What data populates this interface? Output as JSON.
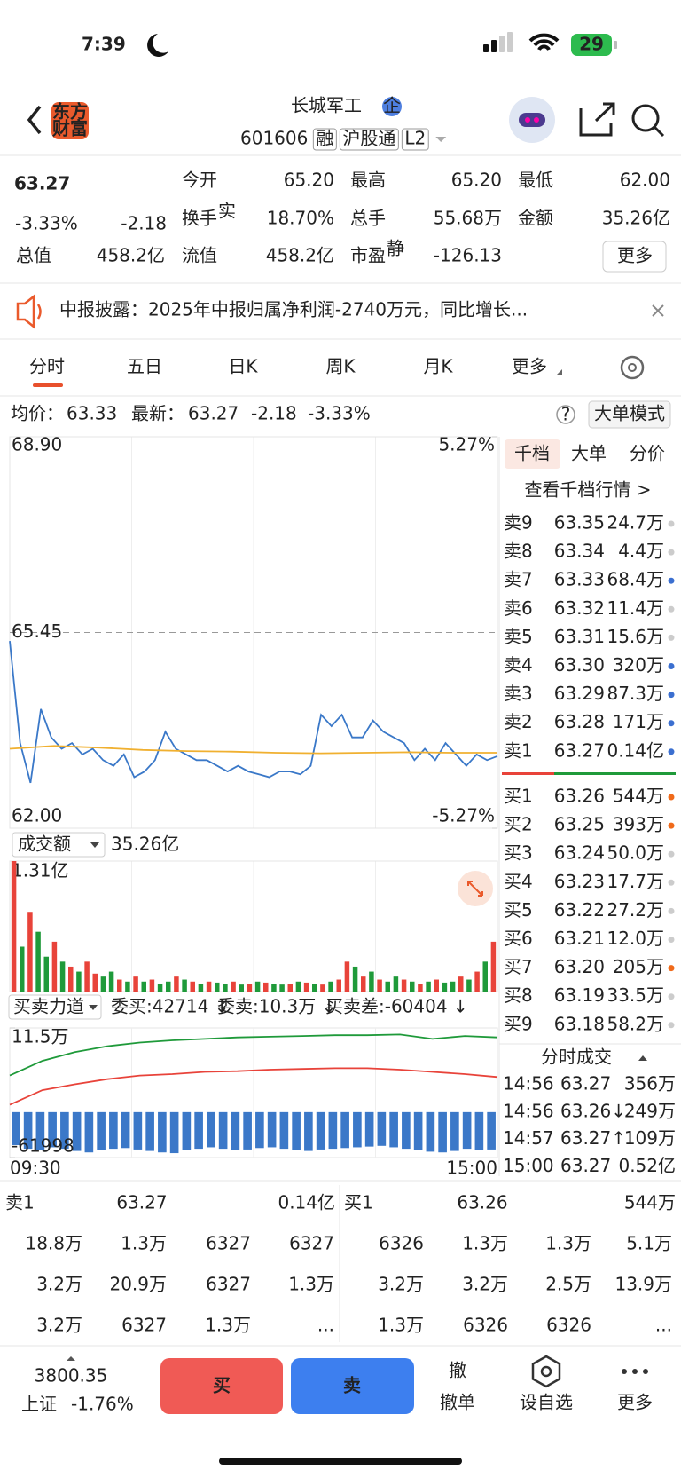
{
  "status_bar": {
    "time": "7:39",
    "battery": "29"
  },
  "header": {
    "logo": [
      "东方",
      "财富"
    ],
    "title": "长城军工",
    "badge": "企",
    "code": "601606",
    "tags": [
      "融",
      "沪股通",
      "L2"
    ]
  },
  "quote": {
    "price": "63.27",
    "change_pct": "-3.33%",
    "change": "-2.18",
    "stats": [
      {
        "label": "今开",
        "value": "65.20",
        "color": "#1f9a3a"
      },
      {
        "label": "最高",
        "value": "65.20",
        "color": "#1f9a3a"
      },
      {
        "label": "最低",
        "value": "62.00",
        "color": "#1f9a3a"
      },
      {
        "label": "换手",
        "sup": "实",
        "value": "18.70%"
      },
      {
        "label": "总手",
        "value": "55.68万"
      },
      {
        "label": "金额",
        "value": "35.26亿"
      },
      {
        "label": "总值",
        "value": "458.2亿"
      },
      {
        "label": "流值",
        "value": "458.2亿"
      },
      {
        "label": "市盈",
        "sup": "静",
        "value": "-126.13"
      }
    ],
    "more": "更多"
  },
  "notice": "中报披露：2025年中报归属净利润-2740万元，同比增长...",
  "tabs": [
    "分时",
    "五日",
    "日K",
    "周K",
    "月K",
    "更多"
  ],
  "info_bar": {
    "avg_label": "均价：",
    "avg": "63.33",
    "latest_label": "最新：",
    "latest": "63.27",
    "change": "-2.18",
    "change_pct": "-3.33%",
    "mode_button": "大单模式"
  },
  "chart_data": [
    {
      "type": "line",
      "ylim": [
        62,
        68.9
      ],
      "yticks": [
        {
          "value": 62,
          "label": "62.00"
        },
        {
          "value": 65.45,
          "label": "65.45"
        },
        {
          "value": 68.9,
          "label": "68.90"
        }
      ],
      "y2lim": [
        -5.27,
        5.27
      ],
      "y2ticks": [
        {
          "value": -5.27,
          "label": "-5.27%"
        },
        {
          "value": 5.27,
          "label": "5.27%"
        }
      ],
      "x_labels": [
        "09:30",
        "15:00"
      ],
      "series": [
        {
          "color": "#3a78c8",
          "values": [
            65.3,
            63.5,
            62.8,
            64.1,
            63.6,
            63.4,
            63.5,
            63.3,
            63.4,
            63.2,
            63.1,
            63.3,
            62.9,
            63.0,
            63.2,
            63.7,
            63.4,
            63.3,
            63.2,
            63.2,
            63.1,
            63.0,
            63.1,
            63.0,
            62.95,
            62.9,
            63.0,
            63.0,
            62.95,
            63.1,
            64.0,
            63.8,
            64.0,
            63.6,
            63.6,
            63.9,
            63.7,
            63.6,
            63.5,
            63.2,
            63.4,
            63.2,
            63.5,
            63.3,
            63.1,
            63.3,
            63.2,
            63.27
          ]
        },
        {
          "color": "#f0b030",
          "values": [
            63.4,
            63.45,
            63.42,
            63.38,
            63.36,
            63.35,
            63.33,
            63.32,
            63.33,
            63.34,
            63.33,
            63.33
          ]
        }
      ]
    },
    {
      "type": "bar",
      "selector": "成交额",
      "total": "35.26亿",
      "ylim": [
        0,
        1.31
      ],
      "yticks": [
        {
          "value": 1.31,
          "label": "1.31亿"
        }
      ],
      "values": [
        1.31,
        0.45,
        0.8,
        0.6,
        0.35,
        0.5,
        0.3,
        0.25,
        0.2,
        0.3,
        0.18,
        0.15,
        0.2,
        0.12,
        0.1,
        0.15,
        0.1,
        0.12,
        0.08,
        0.1,
        0.15,
        0.12,
        0.1,
        0.08,
        0.1,
        0.09,
        0.08,
        0.1,
        0.07,
        0.08,
        0.1,
        0.09,
        0.08,
        0.07,
        0.08,
        0.1,
        0.09,
        0.08,
        0.07,
        0.1,
        0.12,
        0.3,
        0.25,
        0.15,
        0.2,
        0.12,
        0.1,
        0.15,
        0.12,
        0.1,
        0.08,
        0.1,
        0.12,
        0.09,
        0.1,
        0.15,
        0.12,
        0.2,
        0.3,
        0.5
      ],
      "bar_colors": [
        "#e8433a",
        "#1f9a3a",
        "#e8433a",
        "#1f9a3a",
        "#1f9a3a",
        "#e8433a",
        "#1f9a3a",
        "#e8433a",
        "#1f9a3a",
        "#e8433a",
        "#e8433a",
        "#1f9a3a",
        "#1f9a3a",
        "#e8433a",
        "#1f9a3a",
        "#e8433a",
        "#1f9a3a",
        "#e8433a",
        "#1f9a3a",
        "#1f9a3a",
        "#e8433a",
        "#1f9a3a",
        "#e8433a",
        "#1f9a3a",
        "#e8433a",
        "#1f9a3a",
        "#1f9a3a",
        "#e8433a",
        "#1f9a3a",
        "#e8433a",
        "#1f9a3a",
        "#e8433a",
        "#1f9a3a",
        "#1f9a3a",
        "#e8433a",
        "#1f9a3a",
        "#e8433a",
        "#1f9a3a",
        "#e8433a",
        "#1f9a3a",
        "#e8433a",
        "#e8433a",
        "#1f9a3a",
        "#e8433a",
        "#1f9a3a",
        "#e8433a",
        "#1f9a3a",
        "#1f9a3a",
        "#e8433a",
        "#1f9a3a",
        "#e8433a",
        "#1f9a3a",
        "#e8433a",
        "#1f9a3a",
        "#1f9a3a",
        "#e8433a",
        "#1f9a3a",
        "#e8433a",
        "#1f9a3a",
        "#e8433a"
      ]
    },
    {
      "type": "line",
      "title": "买卖力道",
      "stats": [
        {
          "text": "委买:42714 ↓",
          "color": "#e8433a"
        },
        {
          "text": "委卖:10.3万 ↓",
          "color": "#1f9a3a"
        },
        {
          "text": "买卖差:-60404 ↓",
          "color": "#222"
        }
      ],
      "ylim": [
        -61998,
        115000
      ],
      "yticks": [
        {
          "value": -61998,
          "label": "-61998"
        },
        {
          "value": 115000,
          "label": "11.5万"
        }
      ],
      "series": [
        {
          "color": "#1f9a3a",
          "values": [
            50000,
            70000,
            82000,
            90000,
            95000,
            98000,
            100000,
            102000,
            103000,
            104000,
            105000,
            105000,
            106000,
            100000,
            104000,
            102000
          ]
        },
        {
          "color": "#e8433a",
          "values": [
            10000,
            30000,
            38000,
            45000,
            50000,
            52000,
            55000,
            56000,
            58000,
            59000,
            60000,
            60000,
            58000,
            55000,
            52000,
            48000
          ]
        }
      ],
      "bars": {
        "color": "#3b78c8",
        "values": [
          -45000,
          -50000,
          -52000,
          -48000,
          -50000,
          -53000,
          -55000,
          -52000,
          -50000,
          -49000,
          -51000,
          -53000,
          -55000,
          -56000,
          -52000,
          -50000,
          -48000,
          -50000,
          -52000,
          -51000,
          -49000,
          -48000,
          -50000,
          -52000,
          -53000,
          -51000,
          -50000,
          -49000,
          -48000,
          -47000,
          -46000,
          -48000,
          -50000,
          -52000,
          -54000,
          -55000,
          -53000,
          -50000,
          -52000,
          -51000
        ]
      }
    }
  ],
  "order_book": {
    "tabs": [
      "千档",
      "大单",
      "分价"
    ],
    "link": "查看千档行情 >",
    "sell": [
      {
        "label": "卖9",
        "price": "63.35",
        "volume": "24.7万",
        "dot": "#cccccc"
      },
      {
        "label": "卖8",
        "price": "63.34",
        "volume": "4.4万",
        "dot": "#cccccc"
      },
      {
        "label": "卖7",
        "price": "63.33",
        "volume": "68.4万",
        "dot": "#3b6fd0"
      },
      {
        "label": "卖6",
        "price": "63.32",
        "volume": "11.4万",
        "dot": "#cccccc"
      },
      {
        "label": "卖5",
        "price": "63.31",
        "volume": "15.6万",
        "dot": "#cccccc"
      },
      {
        "label": "卖4",
        "price": "63.30",
        "volume": "320万",
        "dot": "#3b6fd0"
      },
      {
        "label": "卖3",
        "price": "63.29",
        "volume": "87.3万",
        "dot": "#3b6fd0"
      },
      {
        "label": "卖2",
        "price": "63.28",
        "volume": "171万",
        "dot": "#3b6fd0"
      },
      {
        "label": "卖1",
        "price": "63.27",
        "volume": "0.14亿",
        "dot": "#3b6fd0"
      }
    ],
    "buy": [
      {
        "label": "买1",
        "price": "63.26",
        "volume": "544万",
        "dot": "#f06a1a"
      },
      {
        "label": "买2",
        "price": "63.25",
        "volume": "393万",
        "dot": "#f06a1a"
      },
      {
        "label": "买3",
        "price": "63.24",
        "volume": "50.0万",
        "dot": "#cccccc"
      },
      {
        "label": "买4",
        "price": "63.23",
        "volume": "17.7万",
        "dot": "#cccccc"
      },
      {
        "label": "买5",
        "price": "63.22",
        "volume": "27.2万",
        "dot": "#cccccc"
      },
      {
        "label": "买6",
        "price": "63.21",
        "volume": "12.0万",
        "dot": "#cccccc"
      },
      {
        "label": "买7",
        "price": "63.20",
        "volume": "205万",
        "dot": "#f06a1a"
      },
      {
        "label": "买8",
        "price": "63.19",
        "volume": "33.5万",
        "dot": "#cccccc"
      },
      {
        "label": "买9",
        "price": "63.18",
        "volume": "58.2万",
        "dot": "#cccccc"
      }
    ]
  },
  "trades": {
    "title": "分时成交",
    "rows": [
      {
        "time": "14:56",
        "price": "63.27",
        "volume": "356万",
        "color": "#e8433a"
      },
      {
        "time": "14:56",
        "price": "63.26↓",
        "volume": "249万",
        "color": "#e8433a"
      },
      {
        "time": "14:57",
        "price": "63.27↑",
        "volume": "109万",
        "color": "#e8433a"
      },
      {
        "time": "15:00",
        "price": "63.27",
        "volume": "0.52亿",
        "color": "#1f9a3a"
      }
    ]
  },
  "summary": {
    "sell": {
      "label": "卖1",
      "price": "63.27",
      "volume": "0.14亿",
      "cells": [
        "18.8万",
        "1.3万",
        "6327",
        "6327",
        "3.2万",
        "20.9万",
        "6327",
        "1.3万",
        "3.2万",
        "6327",
        "1.3万",
        "..."
      ]
    },
    "buy": {
      "label": "买1",
      "price": "63.26",
      "volume": "544万",
      "cells": [
        "6326",
        "1.3万",
        "1.3万",
        "5.1万",
        "3.2万",
        "3.2万",
        "2.5万",
        "13.9万",
        "1.3万",
        "6326",
        "6326",
        "..."
      ]
    }
  },
  "bottom_nav": {
    "index_value": "3800.35",
    "index_name": "上证",
    "index_change": "-1.76%",
    "buy": "买",
    "sell": "卖",
    "cancel_icon": "撤",
    "cancel": "撤单",
    "watch": "设自选",
    "more": "更多"
  }
}
